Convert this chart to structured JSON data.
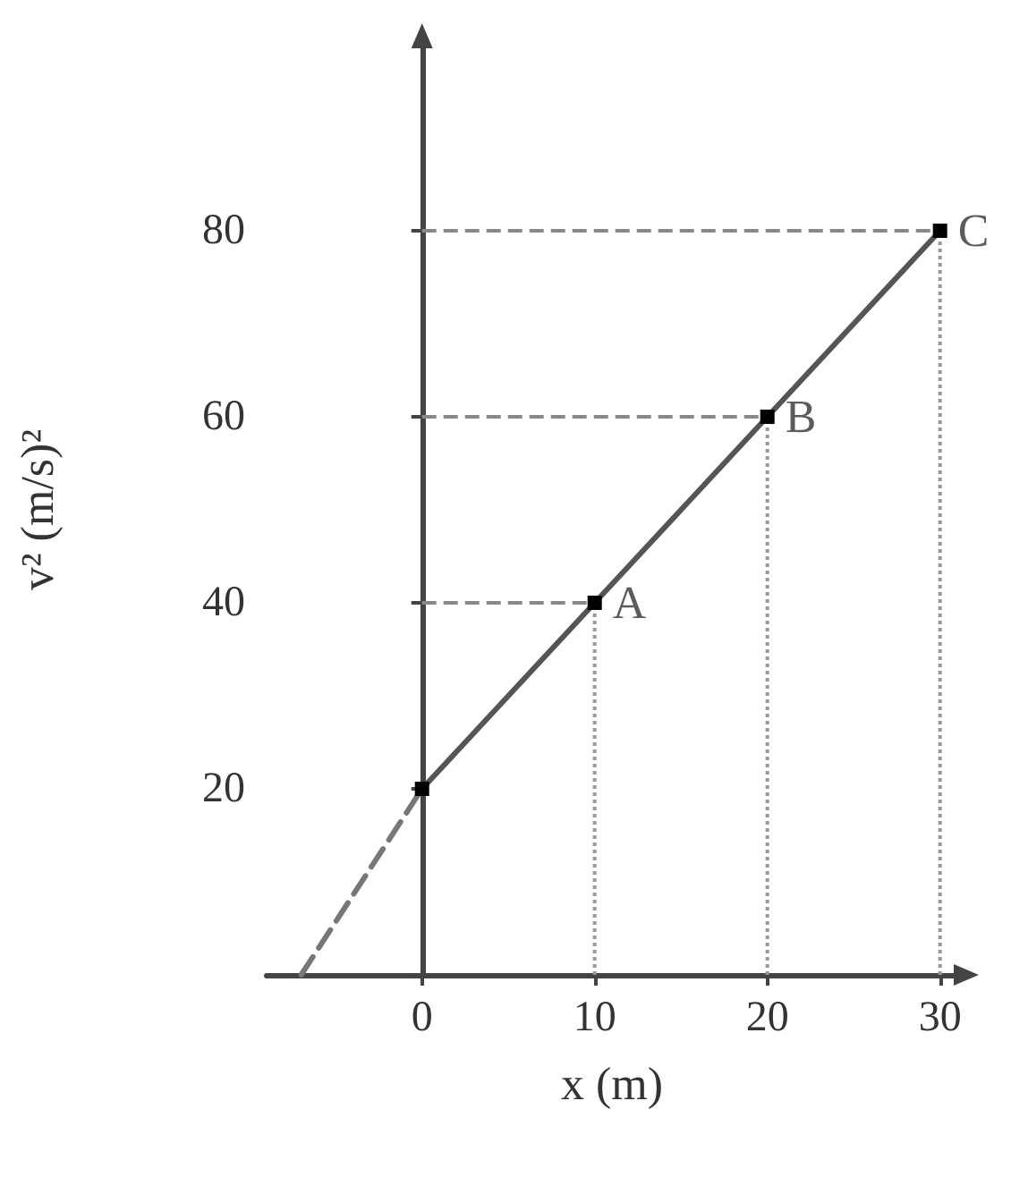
{
  "chart_data": {
    "type": "line",
    "xlabel": "x (m)",
    "ylabel": "v² (m/s)²",
    "series": [
      {
        "color": "#555555",
        "x": [
          0,
          10,
          20,
          30
        ],
        "values": [
          20,
          40,
          60,
          80
        ],
        "marker": "square",
        "line_style": "solid"
      },
      {
        "color": "#777777",
        "x": [
          -7,
          0
        ],
        "values": [
          0,
          20
        ],
        "marker": "none",
        "line_style": "dashed"
      }
    ],
    "xlim": [
      -9,
      31
    ],
    "xticks": [
      0,
      10,
      20,
      30
    ],
    "ylim": [
      0,
      100
    ],
    "yticks": [
      20,
      40,
      60,
      80
    ],
    "ref_lines": [
      {
        "axis": "y",
        "value": 40,
        "line_style": "dashed",
        "color": "#888888"
      },
      {
        "axis": "y",
        "value": 60,
        "line_style": "dashed",
        "color": "#888888"
      },
      {
        "axis": "y",
        "value": 80,
        "line_style": "dashed",
        "color": "#888888"
      },
      {
        "axis": "x",
        "value": 10,
        "line_style": "dotted",
        "color": "#999999"
      },
      {
        "axis": "x",
        "value": 20,
        "line_style": "dotted",
        "color": "#999999"
      },
      {
        "axis": "x",
        "value": 30,
        "line_style": "dotted",
        "color": "#999999"
      }
    ],
    "annotations": [
      {
        "text": "A",
        "x": 10,
        "y": 40
      },
      {
        "text": "B",
        "x": 20,
        "y": 60
      },
      {
        "text": "C",
        "x": 30,
        "y": 80
      }
    ],
    "grid": false
  }
}
